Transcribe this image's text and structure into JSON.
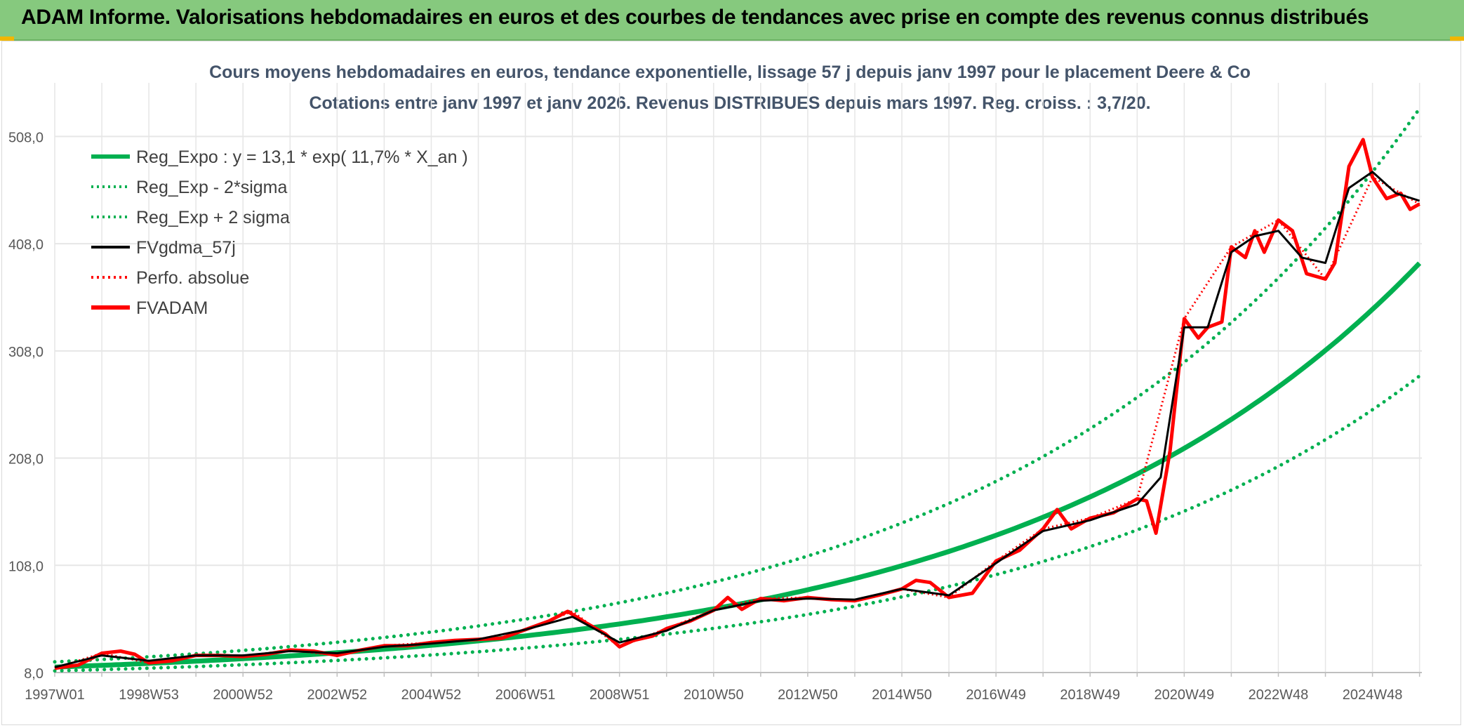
{
  "header": {
    "title": "ADAM Informe. Valorisations hebdomadaires en euros et des courbes de tendances avec prise en compte des revenus connus distribués"
  },
  "colors": {
    "header_bg": "#86c97e",
    "reg_expo": "#00b050",
    "sigma_lines": "#00b050",
    "fvgdma": "#000000",
    "perfo": "#ff0000",
    "fvadam": "#ff0000",
    "grid": "#e6e6e6",
    "title_text": "#44546a"
  },
  "chart_data": {
    "type": "line",
    "title": "Cours moyens hebdomadaires en euros, tendance exponentielle, lissage 57 j depuis janv 1997 pour le placement Deere & Co",
    "subtitle": "Cotations entre janv 1997 et janv 2026. Revenus DISTRIBUES depuis mars 1997. Reg. croiss. : 3,7/20.",
    "xlabel": "",
    "ylabel": "",
    "ylim": [
      8,
      558
    ],
    "y_ticks": [
      "8,0",
      "108,0",
      "208,0",
      "308,0",
      "408,0",
      "508,0"
    ],
    "y_tick_values": [
      8,
      108,
      208,
      308,
      408,
      508
    ],
    "x_range_years": [
      1997.0,
      2026.05
    ],
    "x_tick_labels": [
      "1997W01",
      "1998W53",
      "2000W52",
      "2002W52",
      "2004W52",
      "2006W51",
      "2008W51",
      "2010W50",
      "2012W50",
      "2014W50",
      "2016W49",
      "2018W49",
      "2020W49",
      "2022W48",
      "2024W48"
    ],
    "x_tick_years": [
      1997.0,
      1999.0,
      2001.0,
      2003.0,
      2005.0,
      2007.0,
      2009.0,
      2011.0,
      2013.0,
      2015.0,
      2017.0,
      2019.0,
      2021.0,
      2023.0,
      2025.0
    ],
    "legend": [
      {
        "label": "Reg_Expo : y = 13,1 * exp( 11,7% *  X_an )",
        "style": "solid-thick",
        "color": "#00b050"
      },
      {
        "label": "Reg_Exp - 2*sigma",
        "style": "dotted",
        "color": "#00b050"
      },
      {
        "label": "Reg_Exp + 2 sigma",
        "style": "dotted",
        "color": "#00b050"
      },
      {
        "label": "FVgdma_57j",
        "style": "solid",
        "color": "#000000"
      },
      {
        "label": "Perfo. absolue",
        "style": "dotted",
        "color": "#ff0000"
      },
      {
        "label": "FVADAM",
        "style": "solid-thick",
        "color": "#ff0000"
      }
    ],
    "legend_position": "top-left",
    "regression": {
      "a": 13.1,
      "b": 0.117,
      "sigma_factor_low": 0.73,
      "sigma_factor_high": 1.37
    },
    "series": [
      {
        "name": "FVADAM",
        "x": [
          1997.0,
          1997.5,
          1998.0,
          1998.4,
          1998.7,
          1999.0,
          1999.5,
          2000.0,
          2000.5,
          2001.0,
          2001.5,
          2002.0,
          2002.5,
          2003.0,
          2003.5,
          2004.0,
          2004.5,
          2005.0,
          2005.5,
          2006.0,
          2006.5,
          2007.0,
          2007.5,
          2007.9,
          2008.3,
          2008.7,
          2009.0,
          2009.3,
          2009.7,
          2010.0,
          2010.5,
          2011.0,
          2011.3,
          2011.6,
          2012.0,
          2012.5,
          2013.0,
          2013.5,
          2014.0,
          2014.5,
          2015.0,
          2015.3,
          2015.6,
          2016.0,
          2016.5,
          2017.0,
          2017.5,
          2018.0,
          2018.3,
          2018.6,
          2019.0,
          2019.5,
          2020.0,
          2020.2,
          2020.4,
          2020.7,
          2021.0,
          2021.3,
          2021.5,
          2021.8,
          2022.0,
          2022.3,
          2022.5,
          2022.7,
          2023.0,
          2023.3,
          2023.6,
          2024.0,
          2024.2,
          2024.5,
          2024.8,
          2025.0,
          2025.3,
          2025.6,
          2025.8,
          2026.0
        ],
        "y": [
          12,
          15,
          26,
          28,
          25,
          17,
          19,
          24,
          24,
          23,
          25,
          29,
          28,
          24,
          29,
          33,
          33,
          36,
          38,
          39,
          40,
          48,
          56,
          65,
          54,
          44,
          32,
          38,
          42,
          49,
          56,
          66,
          78,
          67,
          77,
          75,
          78,
          76,
          75,
          80,
          86,
          94,
          92,
          78,
          82,
          112,
          122,
          142,
          160,
          142,
          152,
          157,
          170,
          168,
          138,
          215,
          338,
          320,
          330,
          335,
          405,
          395,
          420,
          400,
          430,
          420,
          380,
          375,
          390,
          480,
          505,
          470,
          450,
          455,
          440,
          445
        ]
      },
      {
        "name": "FVgdma_57j",
        "x": [
          1997.0,
          1998.0,
          1999.0,
          2000.0,
          2001.0,
          2002.0,
          2003.0,
          2004.0,
          2005.0,
          2006.0,
          2007.0,
          2008.0,
          2009.0,
          2010.0,
          2011.0,
          2012.0,
          2013.0,
          2014.0,
          2015.0,
          2016.0,
          2017.0,
          2018.0,
          2019.0,
          2020.0,
          2020.5,
          2021.0,
          2021.5,
          2022.0,
          2022.5,
          2023.0,
          2023.5,
          2024.0,
          2024.5,
          2025.0,
          2025.5,
          2026.0
        ],
        "y": [
          13,
          24,
          19,
          24,
          24,
          28,
          26,
          32,
          35,
          39,
          48,
          60,
          36,
          47,
          66,
          75,
          77,
          76,
          86,
          80,
          110,
          140,
          150,
          165,
          190,
          330,
          330,
          400,
          415,
          420,
          395,
          390,
          460,
          475,
          455,
          448
        ]
      },
      {
        "name": "Perfo. absolue",
        "x": [
          1997.0,
          1998.0,
          1999.0,
          2000.0,
          2001.0,
          2002.0,
          2003.0,
          2004.0,
          2005.0,
          2006.0,
          2007.0,
          2008.0,
          2009.0,
          2010.0,
          2011.0,
          2012.0,
          2013.0,
          2014.0,
          2015.0,
          2016.0,
          2017.0,
          2018.0,
          2019.0,
          2020.0,
          2021.0,
          2022.0,
          2023.0,
          2024.0,
          2025.0,
          2026.0
        ],
        "y": [
          12,
          26,
          17,
          24,
          23,
          29,
          24,
          33,
          36,
          39,
          48,
          65,
          32,
          49,
          66,
          77,
          78,
          75,
          86,
          78,
          112,
          142,
          152,
          170,
          338,
          405,
          430,
          375,
          470,
          445
        ]
      }
    ]
  }
}
